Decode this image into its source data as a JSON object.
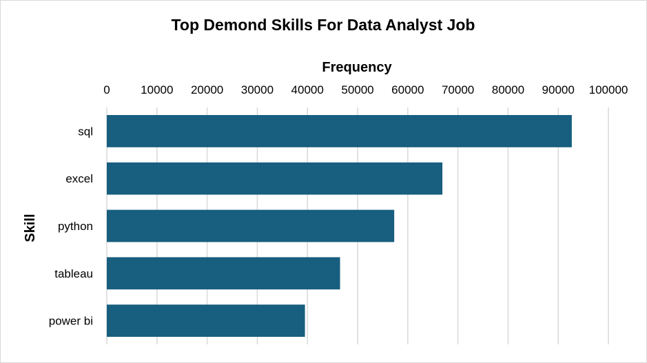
{
  "chart_data": {
    "type": "bar",
    "orientation": "horizontal",
    "title": "Top Demond Skills For Data Analyst Job",
    "xlabel": "Frequency",
    "ylabel": "Skill",
    "categories": [
      "sql",
      "excel",
      "python",
      "tableau",
      "power bi"
    ],
    "values": [
      92700,
      66900,
      57300,
      46500,
      39500
    ],
    "xlim": [
      0,
      100000
    ],
    "xticks": [
      "0",
      "10000",
      "20000",
      "30000",
      "40000",
      "50000",
      "60000",
      "70000",
      "80000",
      "90000",
      "100000"
    ],
    "x_axis_position": "top",
    "grid": true,
    "legend": "none",
    "bar_color": "#175E7F",
    "grid_color": "#d9d9d9"
  }
}
